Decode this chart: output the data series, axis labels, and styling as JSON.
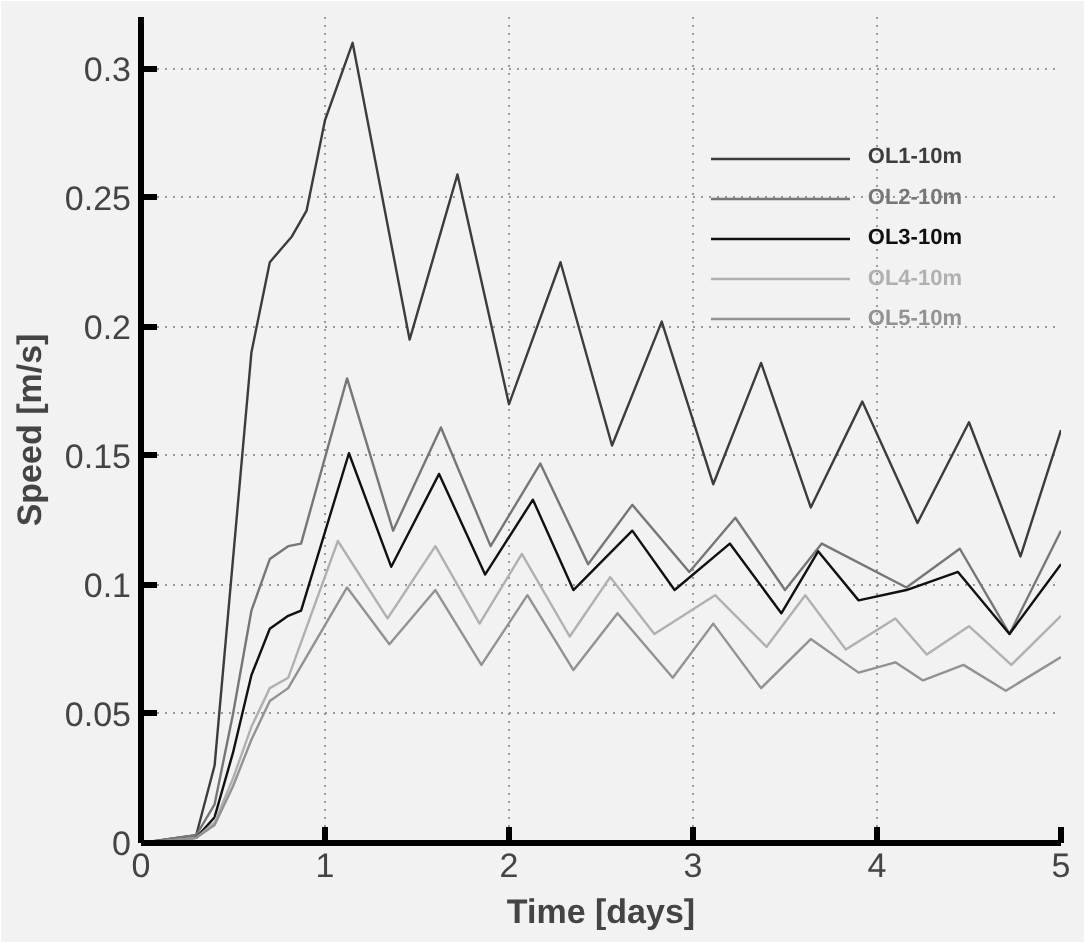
{
  "chart_data": {
    "type": "line",
    "xlabel": "Time [days]",
    "ylabel": "Speed [m/s]",
    "xlim": [
      0,
      5
    ],
    "ylim": [
      0,
      0.32
    ],
    "xticks": [
      0,
      1,
      2,
      3,
      4,
      5
    ],
    "yticks": [
      0,
      0.05,
      0.1,
      0.15,
      0.2,
      0.25,
      0.3
    ],
    "grid": true,
    "legend": "top right",
    "marker": "none",
    "line_style": "solid",
    "series": [
      {
        "name": "OL1-10m",
        "color": "#3c3c3c",
        "x": [
          0,
          0.3,
          0.4,
          0.5,
          0.6,
          0.7,
          0.82,
          0.9,
          1.0,
          1.15,
          1.46,
          1.72,
          2.0,
          2.28,
          2.56,
          2.83,
          3.11,
          3.37,
          3.64,
          3.92,
          4.22,
          4.5,
          4.78,
          5
        ],
        "values": [
          0,
          0.003,
          0.03,
          0.11,
          0.19,
          0.225,
          0.235,
          0.245,
          0.28,
          0.31,
          0.195,
          0.259,
          0.17,
          0.225,
          0.154,
          0.202,
          0.139,
          0.186,
          0.13,
          0.171,
          0.124,
          0.163,
          0.111,
          0.16
        ]
      },
      {
        "name": "OL2-10m",
        "color": "#767676",
        "x": [
          0,
          0.3,
          0.4,
          0.5,
          0.6,
          0.7,
          0.8,
          0.87,
          1.12,
          1.37,
          1.63,
          1.9,
          2.17,
          2.43,
          2.67,
          2.98,
          3.23,
          3.5,
          3.7,
          4.16,
          4.45,
          4.72,
          5
        ],
        "values": [
          0,
          0.003,
          0.015,
          0.05,
          0.09,
          0.11,
          0.115,
          0.116,
          0.18,
          0.121,
          0.161,
          0.115,
          0.147,
          0.108,
          0.131,
          0.105,
          0.126,
          0.098,
          0.116,
          0.099,
          0.114,
          0.081,
          0.121
        ]
      },
      {
        "name": "OL3-10m",
        "color": "#101010",
        "x": [
          0,
          0.3,
          0.4,
          0.5,
          0.6,
          0.7,
          0.8,
          0.87,
          1.13,
          1.36,
          1.62,
          1.87,
          2.13,
          2.35,
          2.67,
          2.9,
          3.2,
          3.48,
          3.68,
          3.9,
          4.16,
          4.44,
          4.72,
          5
        ],
        "values": [
          0,
          0.002,
          0.01,
          0.035,
          0.065,
          0.083,
          0.088,
          0.09,
          0.151,
          0.107,
          0.143,
          0.104,
          0.133,
          0.098,
          0.121,
          0.098,
          0.116,
          0.089,
          0.113,
          0.094,
          0.098,
          0.105,
          0.081,
          0.108
        ]
      },
      {
        "name": "OL4-10m",
        "color": "#b0b0b0",
        "x": [
          0,
          0.3,
          0.4,
          0.5,
          0.6,
          0.7,
          0.8,
          1.07,
          1.34,
          1.6,
          1.84,
          2.07,
          2.33,
          2.55,
          2.79,
          3.12,
          3.4,
          3.61,
          3.83,
          4.1,
          4.27,
          4.5,
          4.73,
          5
        ],
        "values": [
          0,
          0.002,
          0.008,
          0.025,
          0.045,
          0.06,
          0.064,
          0.117,
          0.087,
          0.115,
          0.085,
          0.112,
          0.08,
          0.103,
          0.081,
          0.096,
          0.076,
          0.096,
          0.075,
          0.087,
          0.073,
          0.084,
          0.069,
          0.088
        ]
      },
      {
        "name": "OL5-10m",
        "color": "#929292",
        "x": [
          0,
          0.3,
          0.4,
          0.5,
          0.6,
          0.7,
          0.8,
          1.12,
          1.35,
          1.6,
          1.85,
          2.1,
          2.35,
          2.59,
          2.89,
          3.11,
          3.37,
          3.64,
          3.9,
          4.1,
          4.25,
          4.47,
          4.7,
          5
        ],
        "values": [
          0,
          0.002,
          0.007,
          0.022,
          0.04,
          0.055,
          0.06,
          0.099,
          0.077,
          0.098,
          0.069,
          0.096,
          0.067,
          0.089,
          0.064,
          0.085,
          0.06,
          0.079,
          0.066,
          0.07,
          0.063,
          0.069,
          0.059,
          0.072
        ]
      }
    ]
  }
}
